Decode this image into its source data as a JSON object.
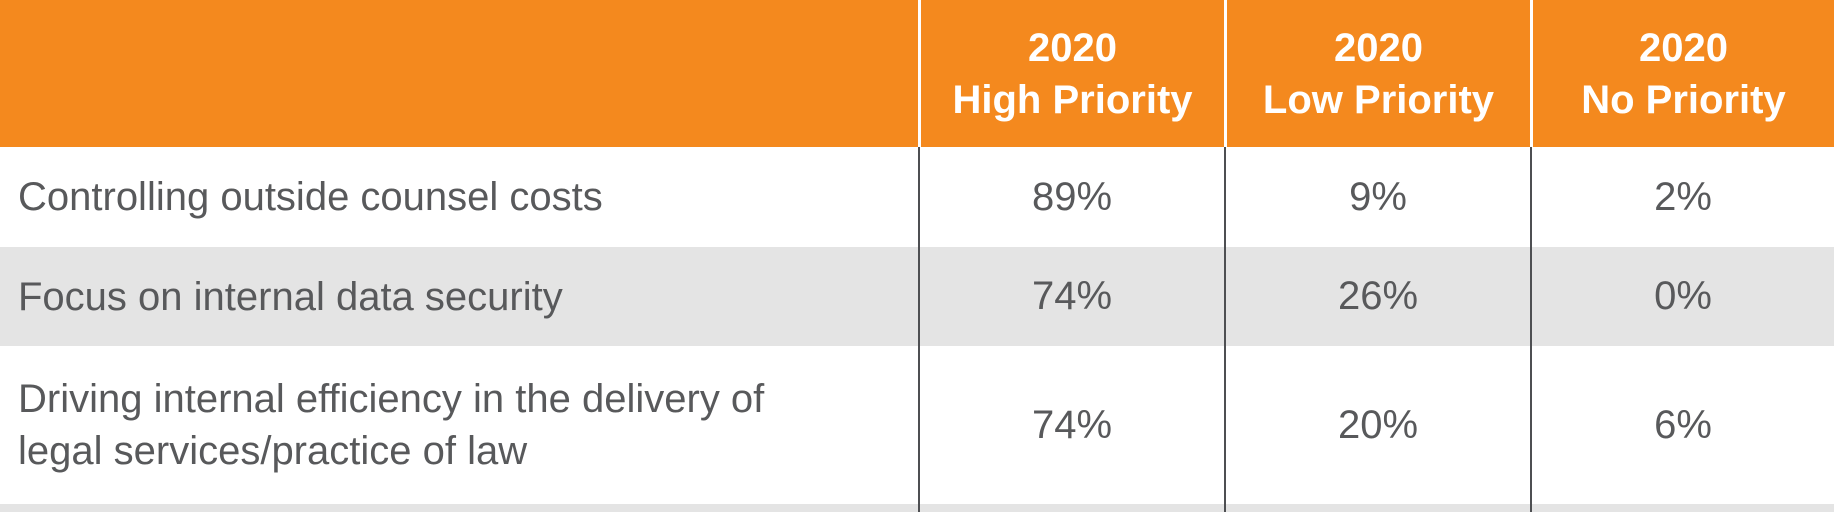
{
  "colors": {
    "header_bg": "#F4891E",
    "header_text": "#FFFFFF",
    "row_bg": "#FFFFFF",
    "row_alt_bg": "#E4E4E4",
    "body_text": "#58595B",
    "divider_body": "#4E4F52",
    "divider_header": "#FFFFFF"
  },
  "table": {
    "header": {
      "corner": "",
      "columns": [
        {
          "line1": "2020",
          "line2": "High Priority"
        },
        {
          "line1": "2020",
          "line2": "Low Priority"
        },
        {
          "line1": "2020",
          "line2": "No Priority"
        }
      ]
    },
    "rows": [
      {
        "label": "Controlling outside counsel costs",
        "values": [
          "89%",
          "9%",
          "2%"
        ]
      },
      {
        "label": "Focus on internal data security",
        "values": [
          "74%",
          "26%",
          "0%"
        ]
      },
      {
        "label": "Driving internal efficiency in the delivery of legal services/practice of law",
        "values": [
          "74%",
          "20%",
          "6%"
        ]
      }
    ]
  },
  "chart_data": {
    "type": "table",
    "columns": [
      "",
      "2020 High Priority",
      "2020 Low Priority",
      "2020 No Priority"
    ],
    "rows": [
      [
        "Controlling outside counsel costs",
        "89%",
        "9%",
        "2%"
      ],
      [
        "Focus on internal data security",
        "74%",
        "26%",
        "0%"
      ],
      [
        "Driving internal efficiency in the delivery of legal services/practice of law",
        "74%",
        "20%",
        "6%"
      ]
    ],
    "legend_position": "none",
    "grid": "column-dividers",
    "notes": "Fourth data row cut off at bottom edge of image"
  }
}
